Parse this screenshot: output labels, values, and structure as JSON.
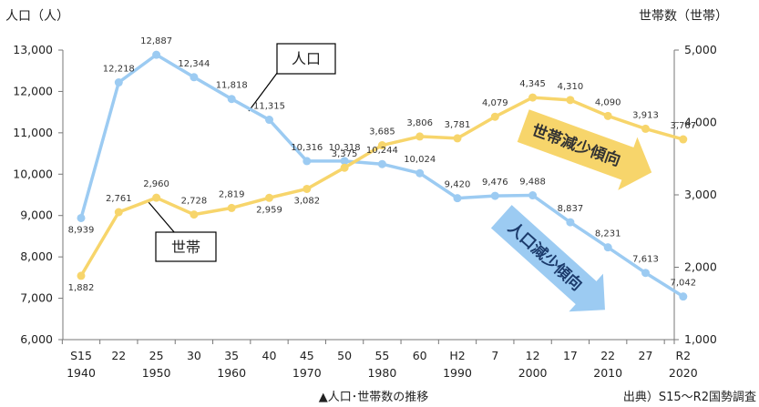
{
  "chart_data": {
    "type": "line",
    "categories": [
      {
        "era": "S15",
        "year": "1940"
      },
      {
        "era": "22",
        "year": ""
      },
      {
        "era": "25",
        "year": "1950"
      },
      {
        "era": "30",
        "year": ""
      },
      {
        "era": "35",
        "year": "1960"
      },
      {
        "era": "40",
        "year": ""
      },
      {
        "era": "45",
        "year": "1970"
      },
      {
        "era": "50",
        "year": ""
      },
      {
        "era": "55",
        "year": "1980"
      },
      {
        "era": "60",
        "year": ""
      },
      {
        "era": "H2",
        "year": "1990"
      },
      {
        "era": "7",
        "year": ""
      },
      {
        "era": "12",
        "year": "2000"
      },
      {
        "era": "17",
        "year": ""
      },
      {
        "era": "22",
        "year": "2010"
      },
      {
        "era": "27",
        "year": ""
      },
      {
        "era": "R2",
        "year": "2020"
      }
    ],
    "series": [
      {
        "name": "人口",
        "axis": "left",
        "color": "#9ccbf2",
        "values": [
          8939,
          12218,
          12887,
          12344,
          11818,
          11315,
          10316,
          10318,
          10244,
          10024,
          9420,
          9476,
          9488,
          8837,
          8231,
          7613,
          7042
        ]
      },
      {
        "name": "世帯",
        "axis": "right",
        "color": "#f7d56b",
        "values": [
          1882,
          2761,
          2960,
          2728,
          2819,
          2959,
          3082,
          3375,
          3685,
          3806,
          3781,
          4079,
          4345,
          4310,
          4090,
          3913,
          3767
        ]
      }
    ],
    "left_axis": {
      "title": "人口（人）",
      "min": 6000,
      "max": 13000,
      "step": 1000
    },
    "right_axis": {
      "title": "世帯数（世帯）",
      "min": 1000,
      "max": 5000,
      "step": 1000
    },
    "callouts": {
      "population": "人口",
      "households": "世帯"
    },
    "trend_arrows": {
      "households": "世帯減少傾向",
      "population": "人口減少傾向",
      "household_arrow_color": "#f7d56b",
      "population_arrow_color": "#9ccbf2"
    },
    "caption": "▲人口･世帯数の推移",
    "source": "出典）S15～R2国勢調査",
    "grid": false,
    "legend": "none"
  }
}
